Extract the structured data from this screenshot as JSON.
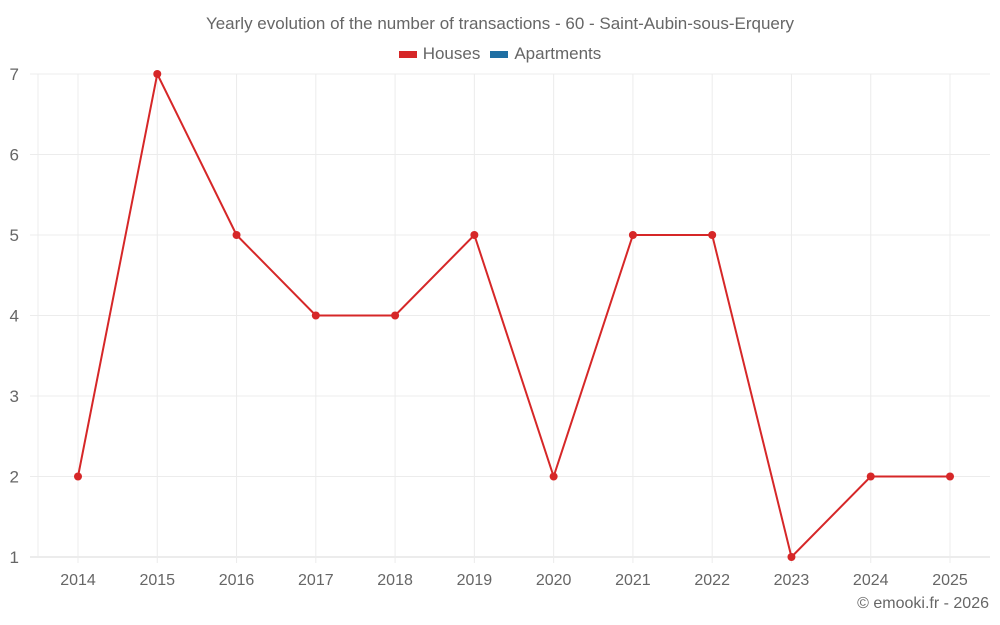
{
  "chart_data": {
    "type": "line",
    "title": "Yearly evolution of the number of transactions - 60 - Saint-Aubin-sous-Erquery",
    "xlabel": "",
    "ylabel": "",
    "categories": [
      "2014",
      "2015",
      "2016",
      "2017",
      "2018",
      "2019",
      "2020",
      "2021",
      "2022",
      "2023",
      "2024",
      "2025"
    ],
    "series": [
      {
        "name": "Houses",
        "color": "#d62728",
        "values": [
          2,
          7,
          5,
          4,
          4,
          5,
          2,
          5,
          5,
          1,
          2,
          2
        ]
      },
      {
        "name": "Apartments",
        "color": "#1f6fa3",
        "values": []
      }
    ],
    "ylim": [
      1,
      7
    ],
    "yticks": [
      1,
      2,
      3,
      4,
      5,
      6,
      7
    ],
    "grid": true,
    "legend_position": "top"
  },
  "legend": [
    {
      "label": "Houses",
      "color": "#d62728"
    },
    {
      "label": "Apartments",
      "color": "#1f6fa3"
    }
  ],
  "credit": "© emooki.fr - 2026"
}
